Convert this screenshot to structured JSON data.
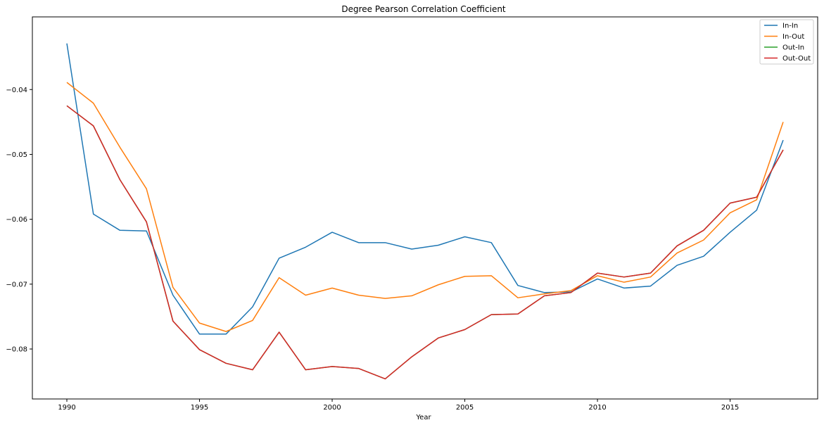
{
  "chart_data": {
    "type": "line",
    "title": "Degree Pearson Correlation Coefficient",
    "xlabel": "Year",
    "ylabel": "",
    "xlim": [
      1988.7,
      2018.3
    ],
    "ylim": [
      -0.0877,
      -0.0288
    ],
    "xticks": [
      1990,
      1995,
      2000,
      2005,
      2010,
      2015
    ],
    "yticks": [
      -0.04,
      -0.05,
      -0.06,
      -0.07,
      -0.08
    ],
    "ytick_labels": [
      "−0.04",
      "−0.05",
      "−0.06",
      "−0.07",
      "−0.08"
    ],
    "grid": false,
    "legend_position": "top-right",
    "x": [
      1990,
      1991,
      1992,
      1993,
      1994,
      1995,
      1996,
      1997,
      1998,
      1999,
      2000,
      2001,
      2002,
      2003,
      2004,
      2005,
      2006,
      2007,
      2008,
      2009,
      2010,
      2011,
      2012,
      2013,
      2014,
      2015,
      2016,
      2017
    ],
    "series": [
      {
        "name": "In-In",
        "color": "#1f77b4",
        "values": [
          -0.0329,
          -0.0592,
          -0.0617,
          -0.0618,
          -0.0717,
          -0.0777,
          -0.0777,
          -0.0735,
          -0.066,
          -0.0643,
          -0.062,
          -0.0636,
          -0.0636,
          -0.0646,
          -0.064,
          -0.0627,
          -0.0636,
          -0.0702,
          -0.0713,
          -0.0712,
          -0.0692,
          -0.0706,
          -0.0703,
          -0.0671,
          -0.0657,
          -0.062,
          -0.0586,
          -0.0478
        ]
      },
      {
        "name": "In-Out",
        "color": "#ff7f0e",
        "values": [
          -0.0389,
          -0.0421,
          -0.0489,
          -0.0553,
          -0.0705,
          -0.076,
          -0.0773,
          -0.0756,
          -0.069,
          -0.0717,
          -0.0706,
          -0.0717,
          -0.0722,
          -0.0718,
          -0.0701,
          -0.0688,
          -0.0687,
          -0.0721,
          -0.0715,
          -0.071,
          -0.0687,
          -0.0697,
          -0.0689,
          -0.0652,
          -0.0632,
          -0.059,
          -0.057,
          -0.045
        ]
      },
      {
        "name": "Out-In",
        "color": "#2ca02c",
        "values": [
          -0.0425,
          -0.0456,
          -0.0539,
          -0.0604,
          -0.0757,
          -0.0801,
          -0.0822,
          -0.0832,
          -0.0774,
          -0.0832,
          -0.0827,
          -0.083,
          -0.0846,
          -0.0812,
          -0.0783,
          -0.077,
          -0.0747,
          -0.0746,
          -0.0718,
          -0.0713,
          -0.0683,
          -0.0689,
          -0.0683,
          -0.0641,
          -0.0617,
          -0.0575,
          -0.0566,
          -0.0493
        ]
      },
      {
        "name": "Out-Out",
        "color": "#d62728",
        "values": [
          -0.0425,
          -0.0456,
          -0.0539,
          -0.0604,
          -0.0757,
          -0.0801,
          -0.0822,
          -0.0832,
          -0.0774,
          -0.0832,
          -0.0827,
          -0.083,
          -0.0846,
          -0.0812,
          -0.0783,
          -0.077,
          -0.0747,
          -0.0746,
          -0.0718,
          -0.0713,
          -0.0683,
          -0.0689,
          -0.0683,
          -0.0641,
          -0.0617,
          -0.0575,
          -0.0566,
          -0.0493
        ]
      }
    ]
  }
}
